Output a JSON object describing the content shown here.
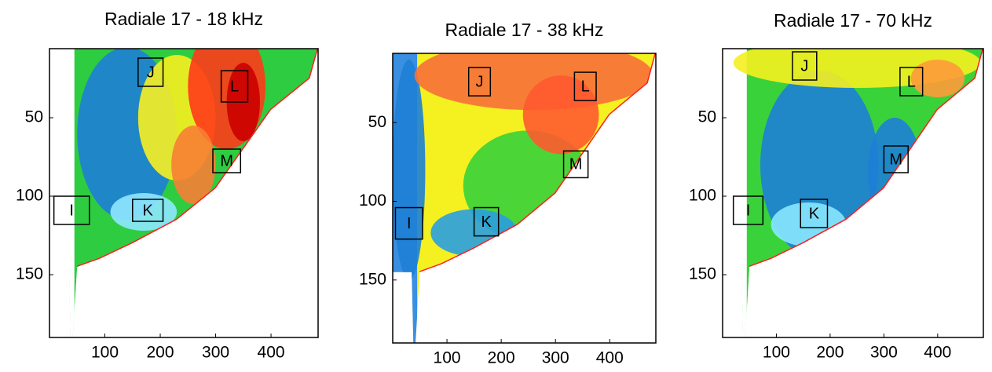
{
  "chart_data": [
    {
      "type": "heatmap",
      "title": "Radiale 17 - 18 kHz",
      "xlim": [
        0,
        485
      ],
      "ylim": [
        6,
        190
      ],
      "xticks": [
        100,
        200,
        300,
        400
      ],
      "yticks": [
        50,
        100,
        150
      ],
      "annotations": [
        "J",
        "L",
        "M",
        "I",
        "K"
      ],
      "palette": "warm"
    },
    {
      "type": "heatmap",
      "title": "Radiale 17 - 38 kHz",
      "xlim": [
        0,
        485
      ],
      "ylim": [
        6,
        190
      ],
      "xticks": [
        100,
        200,
        300,
        400
      ],
      "yticks": [
        50,
        100,
        150
      ],
      "annotations": [
        "J",
        "L",
        "M",
        "I",
        "K"
      ],
      "palette": "orange"
    },
    {
      "type": "heatmap",
      "title": "Radiale 17 - 70 kHz",
      "xlim": [
        0,
        485
      ],
      "ylim": [
        6,
        190
      ],
      "xticks": [
        100,
        200,
        300,
        400
      ],
      "yticks": [
        50,
        100,
        150
      ],
      "annotations": [
        "J",
        "L",
        "M",
        "I",
        "K"
      ],
      "palette": "cool"
    }
  ]
}
